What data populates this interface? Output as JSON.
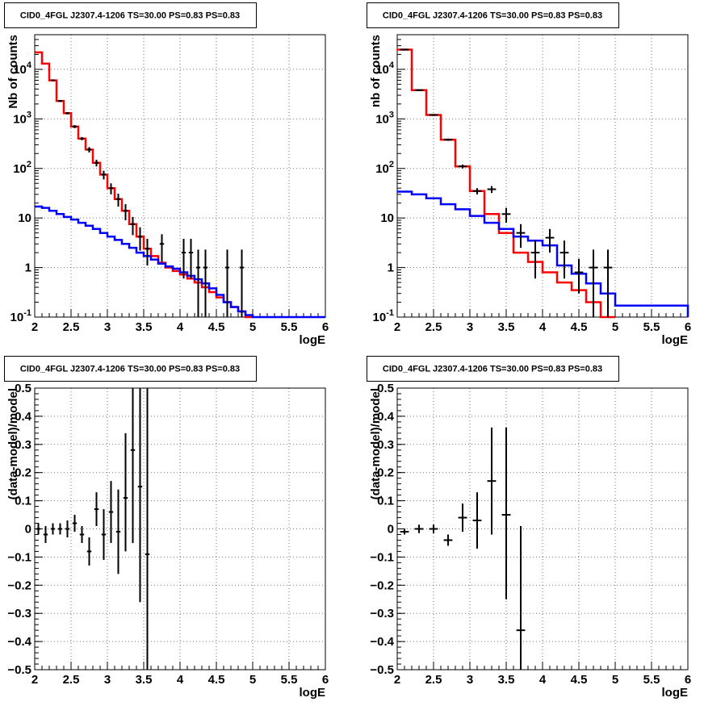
{
  "chart_data": [
    {
      "type": "line",
      "title": "CID0_4FGL J2307.4-1206 TS=30.00 PS=0.83 PS=0.83",
      "xlabel": "logE",
      "ylabel": "Nb of counts",
      "xlim": [
        2,
        6
      ],
      "ylim": [
        0.1,
        50000
      ],
      "yscale": "log",
      "grid": true,
      "xticks": [
        "2",
        "2.5",
        "3",
        "3.5",
        "4",
        "4.5",
        "5",
        "5.5",
        "6"
      ],
      "yticks": [
        {
          "base": "10",
          "exp": "-1"
        },
        {
          "base": "1",
          "exp": ""
        },
        {
          "base": "10",
          "exp": ""
        },
        {
          "base": "10",
          "exp": "2"
        },
        {
          "base": "10",
          "exp": "3"
        },
        {
          "base": "10",
          "exp": "4"
        }
      ],
      "series": [
        {
          "color": "#ff0000",
          "style": "step",
          "edges": [
            2.0,
            2.1,
            2.2,
            2.3,
            2.4,
            2.5,
            2.6,
            2.7,
            2.8,
            2.9,
            3.0,
            3.1,
            3.2,
            3.3,
            3.4,
            3.5,
            3.6,
            3.7,
            3.8,
            3.9,
            4.0,
            4.1,
            4.2,
            4.3,
            4.4,
            4.5,
            4.6,
            4.7,
            4.8,
            4.9,
            5.0
          ],
          "values": [
            22000,
            13000,
            6000,
            2300,
            1300,
            700,
            400,
            240,
            130,
            75,
            40,
            24,
            14,
            7.5,
            4.2,
            2.4,
            1.7,
            1.25,
            1.0,
            0.85,
            0.72,
            0.6,
            0.5,
            0.4,
            0.32,
            0.25,
            0.2,
            0.16,
            0.13,
            0.1
          ]
        },
        {
          "color": "#0000ff",
          "style": "step",
          "edges": [
            2.0,
            2.1,
            2.2,
            2.3,
            2.4,
            2.5,
            2.6,
            2.7,
            2.8,
            2.9,
            3.0,
            3.1,
            3.2,
            3.3,
            3.4,
            3.5,
            3.6,
            3.7,
            3.8,
            3.9,
            4.0,
            4.1,
            4.2,
            4.3,
            4.4,
            4.5,
            4.6,
            4.7,
            4.8,
            4.9,
            5.0,
            6.0
          ],
          "values": [
            17,
            16,
            14,
            12,
            10.5,
            9.3,
            8,
            7,
            6,
            5,
            4.2,
            3.6,
            3,
            2.5,
            2,
            1.7,
            1.45,
            1.2,
            1.05,
            0.95,
            0.8,
            0.68,
            0.58,
            0.48,
            0.38,
            0.28,
            0.2,
            0.16,
            0.13,
            0.11,
            0.1
          ]
        },
        {
          "color": "#000000",
          "style": "errorbar",
          "x": [
            2.25,
            2.35,
            2.45,
            2.55,
            2.65,
            2.75,
            2.85,
            2.95,
            3.05,
            3.15,
            3.25,
            3.35,
            3.45,
            3.55,
            3.75,
            4.05,
            4.15,
            4.25,
            4.35,
            4.65,
            4.85
          ],
          "y": [
            6000,
            2300,
            1300,
            700,
            400,
            240,
            130,
            75,
            40,
            24,
            14,
            7.5,
            4.2,
            2.4,
            3,
            2,
            2,
            1,
            1,
            1,
            1
          ],
          "ylow": [
            5800,
            2200,
            1230,
            650,
            370,
            210,
            110,
            60,
            30,
            17,
            9,
            4.5,
            2.2,
            1.1,
            1.3,
            0.6,
            0.6,
            0.1,
            0.1,
            0.1,
            0.1
          ],
          "yhigh": [
            6200,
            2400,
            1370,
            750,
            430,
            270,
            150,
            90,
            50,
            31,
            19,
            10.5,
            6.5,
            3.8,
            4.7,
            3.8,
            3.8,
            2.3,
            2.3,
            2.3,
            2.3
          ]
        }
      ]
    },
    {
      "type": "line",
      "title": "CID0_4FGL J2307.4-1206 TS=30.00 PS=0.83 PS=0.83",
      "xlabel": "logE",
      "ylabel": "nb of counts",
      "xlim": [
        2,
        6
      ],
      "ylim": [
        0.1,
        50000
      ],
      "yscale": "log",
      "grid": true,
      "xticks": [
        "2",
        "2.5",
        "3",
        "3.5",
        "4",
        "4.5",
        "5",
        "5.5",
        "6"
      ],
      "yticks": [
        {
          "base": "10",
          "exp": "-1"
        },
        {
          "base": "1",
          "exp": ""
        },
        {
          "base": "10",
          "exp": ""
        },
        {
          "base": "10",
          "exp": "2"
        },
        {
          "base": "10",
          "exp": "3"
        },
        {
          "base": "10",
          "exp": "4"
        }
      ],
      "series": [
        {
          "color": "#ff0000",
          "style": "step",
          "edges": [
            2.0,
            2.2,
            2.4,
            2.6,
            2.8,
            3.0,
            3.2,
            3.4,
            3.6,
            3.8,
            4.0,
            4.2,
            4.4,
            4.6,
            4.8,
            5.0
          ],
          "values": [
            25000,
            3800,
            1200,
            380,
            110,
            35,
            12,
            5,
            2,
            1.3,
            0.8,
            0.5,
            0.35,
            0.2,
            0.1
          ]
        },
        {
          "color": "#0000ff",
          "style": "step",
          "edges": [
            2.0,
            2.2,
            2.4,
            2.6,
            2.8,
            3.0,
            3.2,
            3.4,
            3.6,
            3.8,
            4.0,
            4.2,
            4.4,
            4.6,
            4.8,
            5.0,
            6.0
          ],
          "values": [
            34,
            30,
            25,
            19,
            15,
            11,
            8,
            6,
            4.2,
            3.5,
            2.8,
            1.1,
            0.75,
            0.48,
            0.3,
            0.17,
            0.1
          ]
        },
        {
          "color": "#000000",
          "style": "errorbar",
          "x": [
            2.1,
            2.3,
            2.5,
            2.7,
            2.9,
            3.1,
            3.3,
            3.5,
            3.7,
            3.9,
            4.1,
            4.3,
            4.5,
            4.7,
            4.9
          ],
          "y": [
            25000,
            3800,
            1200,
            380,
            110,
            35,
            38,
            12,
            5,
            2,
            4,
            2,
            0.8,
            1,
            1
          ],
          "ylow": [
            24000,
            3650,
            1150,
            360,
            100,
            30,
            32,
            8,
            2.5,
            0.6,
            2,
            0.6,
            0.3,
            0.1,
            0.1
          ],
          "yhigh": [
            26000,
            3950,
            1250,
            400,
            120,
            40,
            44,
            16,
            7.5,
            3.5,
            6,
            3.5,
            1.5,
            2.3,
            2.3
          ]
        }
      ]
    },
    {
      "type": "scatter",
      "title": "CID0_4FGL J2307.4-1206 TS=30.00 PS=0.83 PS=0.83",
      "xlabel": "logE",
      "ylabel": "(data-model)/model",
      "xlim": [
        2,
        6
      ],
      "ylim": [
        -0.5,
        0.5
      ],
      "grid": true,
      "xticks": [
        "2",
        "2.5",
        "3",
        "3.5",
        "4",
        "4.5",
        "5",
        "5.5",
        "6"
      ],
      "yticks": [
        "−0.5",
        "−0.4",
        "−0.3",
        "−0.2",
        "−0.1",
        "0",
        "0.1",
        "0.2",
        "0.3",
        "0.4",
        "0.5"
      ],
      "series": [
        {
          "color": "#000000",
          "style": "errorbar",
          "xhalf": 0.05,
          "x": [
            2.05,
            2.15,
            2.25,
            2.35,
            2.45,
            2.55,
            2.65,
            2.75,
            2.85,
            2.95,
            3.05,
            3.15,
            3.25,
            3.35,
            3.45,
            3.55
          ],
          "y": [
            0,
            -0.02,
            0,
            0,
            0,
            0.02,
            -0.02,
            -0.08,
            0.07,
            -0.02,
            0.06,
            -0.01,
            0.11,
            0.28,
            0.15,
            -0.09
          ],
          "ylow": [
            -0.02,
            -0.05,
            -0.02,
            -0.02,
            -0.03,
            -0.01,
            -0.05,
            -0.13,
            0.01,
            -0.11,
            -0.05,
            -0.16,
            -0.08,
            -0.05,
            -0.26,
            -0.5
          ],
          "yhigh": [
            0.02,
            0.01,
            0.02,
            0.02,
            0.03,
            0.05,
            0.01,
            -0.03,
            0.13,
            0.07,
            0.17,
            0.14,
            0.34,
            0.5,
            0.5,
            0.5
          ]
        }
      ]
    },
    {
      "type": "scatter",
      "title": "CID0_4FGL J2307.4-1206 TS=30.00 PS=0.83 PS=0.83",
      "xlabel": "logE",
      "ylabel": "(data-model)/model",
      "xlim": [
        2,
        6
      ],
      "ylim": [
        -0.5,
        0.5
      ],
      "grid": true,
      "xticks": [
        "2",
        "2.5",
        "3",
        "3.5",
        "4",
        "4.5",
        "5",
        "5.5",
        "6"
      ],
      "yticks": [
        "−0.5",
        "−0.4",
        "−0.3",
        "−0.2",
        "−0.1",
        "0",
        "0.1",
        "0.2",
        "0.3",
        "0.4",
        "0.5"
      ],
      "series": [
        {
          "color": "#000000",
          "style": "errorbar",
          "xhalf": 0.1,
          "x": [
            2.1,
            2.3,
            2.5,
            2.7,
            2.9,
            3.1,
            3.3,
            3.5,
            3.7
          ],
          "y": [
            -0.01,
            0,
            0,
            -0.04,
            0.04,
            0.03,
            0.17,
            0.05,
            -0.36
          ],
          "ylow": [
            -0.02,
            -0.015,
            -0.015,
            -0.06,
            -0.01,
            -0.07,
            -0.02,
            -0.25,
            -0.5
          ],
          "yhigh": [
            0.0,
            0.015,
            0.015,
            -0.02,
            0.09,
            0.13,
            0.36,
            0.36,
            0.01
          ]
        }
      ]
    }
  ]
}
